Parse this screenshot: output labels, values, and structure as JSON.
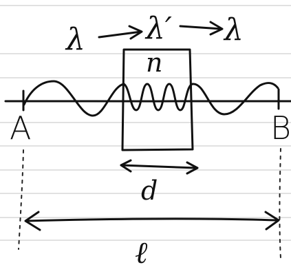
{
  "top": {
    "lambda_in": "λ",
    "lambda_mid": "λ′",
    "lambda_out": "λ"
  },
  "slab": {
    "index_label": "n"
  },
  "points": {
    "left_label": "A",
    "right_label": "B"
  },
  "dimensions": {
    "slab_thickness_label": "d",
    "total_length_label": "ℓ"
  }
}
